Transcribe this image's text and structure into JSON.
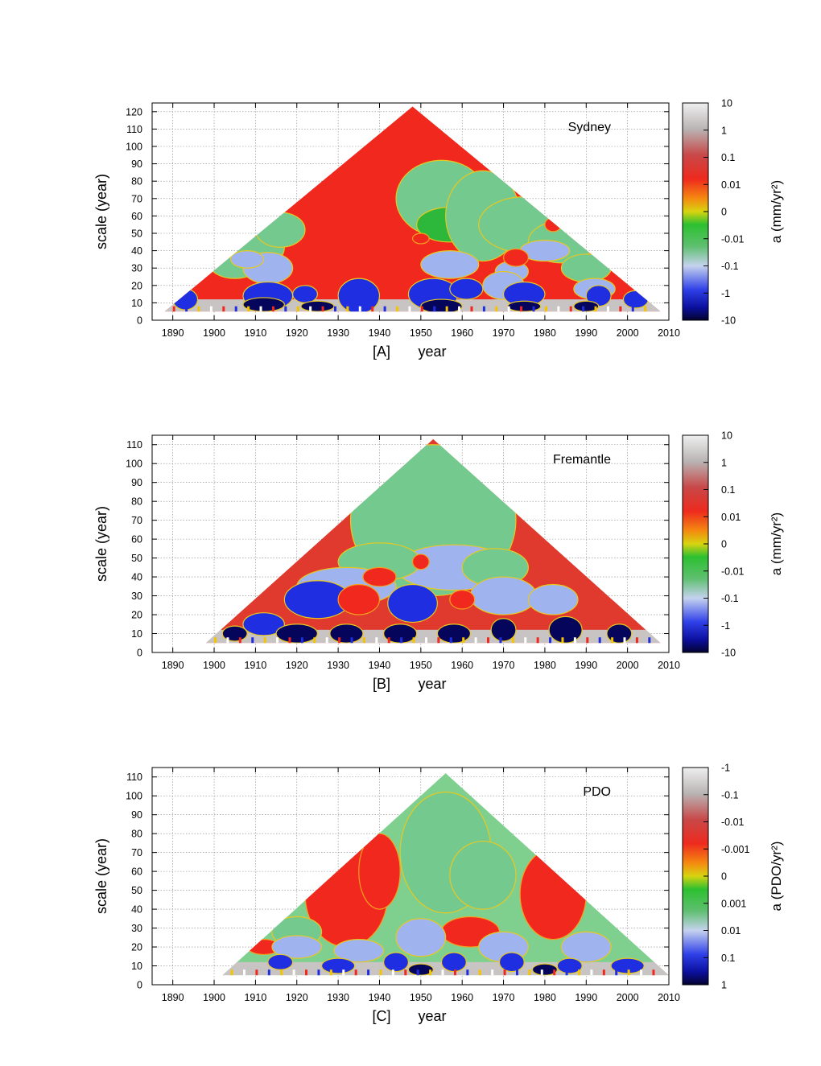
{
  "figure": {
    "panels": [
      {
        "id": "A",
        "caption_letter": "[A]",
        "station": "Sydney",
        "colorbar_label": "a (mm/yr²)",
        "colorbar_ticks": [
          "10",
          "1",
          "0.1",
          "0.01",
          "0",
          "-0.01",
          "-0.1",
          "-1",
          "-10"
        ]
      },
      {
        "id": "B",
        "caption_letter": "[B]",
        "station": "Fremantle",
        "colorbar_label": "a (mm/yr²)",
        "colorbar_ticks": [
          "10",
          "1",
          "0.1",
          "0.01",
          "0",
          "-0.01",
          "-0.1",
          "-1",
          "-10"
        ]
      },
      {
        "id": "C",
        "caption_letter": "[C]",
        "station": "PDO",
        "colorbar_label": "a (PDO/yr²)",
        "colorbar_ticks": [
          "-1",
          "-0.1",
          "-0.01",
          "-0.001",
          "0",
          "0.001",
          "0.01",
          "0.1",
          "1"
        ]
      }
    ]
  },
  "chart_data": [
    {
      "type": "heatmap",
      "title": "Sydney",
      "xlabel": "year",
      "ylabel": "scale (year)",
      "xlim": [
        1885,
        2010
      ],
      "ylim": [
        0,
        125
      ],
      "xticks": [
        1890,
        1900,
        1910,
        1920,
        1930,
        1940,
        1950,
        1960,
        1970,
        1980,
        1990,
        2000,
        2010
      ],
      "yticks": [
        0,
        10,
        20,
        30,
        40,
        50,
        60,
        70,
        80,
        90,
        100,
        110,
        120
      ],
      "grid": true,
      "domain_triangle": {
        "x_start": 1888,
        "x_end": 2008,
        "apex_year": 1948,
        "apex_scale": 123,
        "min_scale": 5
      },
      "blobs": [
        {
          "year": 1955,
          "scale": 70,
          "rx": 11,
          "ry": 22,
          "cls": "lgreen"
        },
        {
          "year": 1957,
          "scale": 55,
          "rx": 8,
          "ry": 10,
          "cls": "green"
        },
        {
          "year": 1965,
          "scale": 60,
          "rx": 9,
          "ry": 26,
          "cls": "lgreen"
        },
        {
          "year": 1975,
          "scale": 55,
          "rx": 11,
          "ry": 16,
          "cls": "lgreen"
        },
        {
          "year": 1984,
          "scale": 45,
          "rx": 8,
          "ry": 12,
          "cls": "lgreen"
        },
        {
          "year": 1990,
          "scale": 30,
          "rx": 6,
          "ry": 8,
          "cls": "lgreen"
        },
        {
          "year": 1905,
          "scale": 32,
          "rx": 6,
          "ry": 8,
          "cls": "lgreen"
        },
        {
          "year": 1910,
          "scale": 42,
          "rx": 7,
          "ry": 12,
          "cls": "lgreen"
        },
        {
          "year": 1916,
          "scale": 52,
          "rx": 6,
          "ry": 10,
          "cls": "lgreen"
        },
        {
          "year": 1913,
          "scale": 30,
          "rx": 6,
          "ry": 9,
          "cls": "lblue"
        },
        {
          "year": 1908,
          "scale": 35,
          "rx": 4,
          "ry": 5,
          "cls": "lblue"
        },
        {
          "year": 1957,
          "scale": 32,
          "rx": 7,
          "ry": 8,
          "cls": "lblue"
        },
        {
          "year": 1972,
          "scale": 28,
          "rx": 4,
          "ry": 6,
          "cls": "lblue"
        },
        {
          "year": 1980,
          "scale": 40,
          "rx": 6,
          "ry": 6,
          "cls": "lblue"
        },
        {
          "year": 1970,
          "scale": 20,
          "rx": 5,
          "ry": 8,
          "cls": "lblue"
        },
        {
          "year": 1992,
          "scale": 18,
          "rx": 5,
          "ry": 6,
          "cls": "lblue"
        },
        {
          "year": 1913,
          "scale": 14,
          "rx": 6,
          "ry": 8,
          "cls": "blue"
        },
        {
          "year": 1922,
          "scale": 15,
          "rx": 3,
          "ry": 5,
          "cls": "blue"
        },
        {
          "year": 1935,
          "scale": 14,
          "rx": 5,
          "ry": 10,
          "cls": "blue"
        },
        {
          "year": 1953,
          "scale": 15,
          "rx": 6,
          "ry": 9,
          "cls": "blue"
        },
        {
          "year": 1961,
          "scale": 18,
          "rx": 4,
          "ry": 6,
          "cls": "blue"
        },
        {
          "year": 1975,
          "scale": 15,
          "rx": 5,
          "ry": 7,
          "cls": "blue"
        },
        {
          "year": 1993,
          "scale": 14,
          "rx": 3,
          "ry": 6,
          "cls": "blue"
        },
        {
          "year": 2002,
          "scale": 12,
          "rx": 3,
          "ry": 5,
          "cls": "blue"
        },
        {
          "year": 1893,
          "scale": 12,
          "rx": 3,
          "ry": 6,
          "cls": "blue"
        },
        {
          "year": 1973,
          "scale": 36,
          "rx": 3,
          "ry": 5,
          "cls": "red"
        },
        {
          "year": 1950,
          "scale": 47,
          "rx": 2,
          "ry": 3,
          "cls": "red"
        },
        {
          "year": 1982,
          "scale": 55,
          "rx": 2,
          "ry": 4,
          "cls": "red"
        },
        {
          "year": 1912,
          "scale": 9,
          "rx": 5,
          "ry": 4,
          "cls": "dblue"
        },
        {
          "year": 1925,
          "scale": 8,
          "rx": 4,
          "ry": 3,
          "cls": "dblue"
        },
        {
          "year": 1955,
          "scale": 8,
          "rx": 5,
          "ry": 4,
          "cls": "dblue"
        },
        {
          "year": 1975,
          "scale": 8,
          "rx": 4,
          "ry": 3,
          "cls": "dblue"
        },
        {
          "year": 1990,
          "scale": 8,
          "rx": 3,
          "ry": 3,
          "cls": "dblue"
        }
      ]
    },
    {
      "type": "heatmap",
      "title": "Fremantle",
      "xlabel": "year",
      "ylabel": "scale (year)",
      "xlim": [
        1885,
        2010
      ],
      "ylim": [
        0,
        115
      ],
      "xticks": [
        1890,
        1900,
        1910,
        1920,
        1930,
        1940,
        1950,
        1960,
        1970,
        1980,
        1990,
        2000,
        2010
      ],
      "yticks": [
        0,
        10,
        20,
        30,
        40,
        50,
        60,
        70,
        80,
        90,
        100,
        110
      ],
      "grid": true,
      "domain_triangle": {
        "x_start": 1898,
        "x_end": 2008,
        "apex_year": 1953,
        "apex_scale": 113,
        "min_scale": 5
      },
      "blobs": [
        {
          "year": 1953,
          "scale": 70,
          "rx": 20,
          "ry": 40,
          "cls": "lgreen"
        },
        {
          "year": 1958,
          "scale": 45,
          "rx": 14,
          "ry": 12,
          "cls": "lblue"
        },
        {
          "year": 1940,
          "scale": 48,
          "rx": 10,
          "ry": 10,
          "cls": "lgreen"
        },
        {
          "year": 1968,
          "scale": 45,
          "rx": 8,
          "ry": 10,
          "cls": "lgreen"
        },
        {
          "year": 1932,
          "scale": 35,
          "rx": 12,
          "ry": 10,
          "cls": "lblue"
        },
        {
          "year": 1925,
          "scale": 28,
          "rx": 8,
          "ry": 10,
          "cls": "blue"
        },
        {
          "year": 1948,
          "scale": 26,
          "rx": 6,
          "ry": 10,
          "cls": "blue"
        },
        {
          "year": 1970,
          "scale": 30,
          "rx": 8,
          "ry": 10,
          "cls": "lblue"
        },
        {
          "year": 1982,
          "scale": 28,
          "rx": 6,
          "ry": 8,
          "cls": "lblue"
        },
        {
          "year": 1912,
          "scale": 15,
          "rx": 5,
          "ry": 6,
          "cls": "blue"
        },
        {
          "year": 1940,
          "scale": 40,
          "rx": 4,
          "ry": 5,
          "cls": "red"
        },
        {
          "year": 1935,
          "scale": 28,
          "rx": 5,
          "ry": 8,
          "cls": "red"
        },
        {
          "year": 1960,
          "scale": 28,
          "rx": 3,
          "ry": 5,
          "cls": "red"
        },
        {
          "year": 1950,
          "scale": 48,
          "rx": 2,
          "ry": 4,
          "cls": "red"
        },
        {
          "year": 1920,
          "scale": 10,
          "rx": 5,
          "ry": 5,
          "cls": "dblue"
        },
        {
          "year": 1932,
          "scale": 10,
          "rx": 4,
          "ry": 5,
          "cls": "dblue"
        },
        {
          "year": 1945,
          "scale": 10,
          "rx": 4,
          "ry": 5,
          "cls": "dblue"
        },
        {
          "year": 1958,
          "scale": 10,
          "rx": 4,
          "ry": 5,
          "cls": "dblue"
        },
        {
          "year": 1970,
          "scale": 12,
          "rx": 3,
          "ry": 6,
          "cls": "dblue"
        },
        {
          "year": 1985,
          "scale": 12,
          "rx": 4,
          "ry": 7,
          "cls": "dblue"
        },
        {
          "year": 1998,
          "scale": 10,
          "rx": 3,
          "ry": 5,
          "cls": "dblue"
        },
        {
          "year": 1905,
          "scale": 10,
          "rx": 3,
          "ry": 4,
          "cls": "dblue"
        }
      ]
    },
    {
      "type": "heatmap",
      "title": "PDO",
      "xlabel": "year",
      "ylabel": "scale (year)",
      "xlim": [
        1885,
        2010
      ],
      "ylim": [
        0,
        115
      ],
      "xticks": [
        1890,
        1900,
        1910,
        1920,
        1930,
        1940,
        1950,
        1960,
        1970,
        1980,
        1990,
        2000,
        2010
      ],
      "yticks": [
        0,
        10,
        20,
        30,
        40,
        50,
        60,
        70,
        80,
        90,
        100,
        110
      ],
      "grid": true,
      "domain_triangle": {
        "x_start": 1902,
        "x_end": 2010,
        "apex_year": 1956,
        "apex_scale": 112,
        "min_scale": 5
      },
      "blobs": [
        {
          "year": 1932,
          "scale": 48,
          "rx": 10,
          "ry": 28,
          "cls": "red"
        },
        {
          "year": 1940,
          "scale": 60,
          "rx": 5,
          "ry": 20,
          "cls": "red"
        },
        {
          "year": 1982,
          "scale": 48,
          "rx": 8,
          "ry": 24,
          "cls": "red"
        },
        {
          "year": 1956,
          "scale": 70,
          "rx": 11,
          "ry": 32,
          "cls": "lgreen"
        },
        {
          "year": 1965,
          "scale": 58,
          "rx": 8,
          "ry": 18,
          "cls": "lgreen"
        },
        {
          "year": 1962,
          "scale": 28,
          "rx": 7,
          "ry": 8,
          "cls": "red"
        },
        {
          "year": 1912,
          "scale": 20,
          "rx": 4,
          "ry": 4,
          "cls": "red"
        },
        {
          "year": 1920,
          "scale": 28,
          "rx": 6,
          "ry": 8,
          "cls": "lgreen"
        },
        {
          "year": 1920,
          "scale": 20,
          "rx": 6,
          "ry": 6,
          "cls": "lblue"
        },
        {
          "year": 1935,
          "scale": 18,
          "rx": 6,
          "ry": 6,
          "cls": "lblue"
        },
        {
          "year": 1950,
          "scale": 25,
          "rx": 6,
          "ry": 10,
          "cls": "lblue"
        },
        {
          "year": 1970,
          "scale": 20,
          "rx": 6,
          "ry": 8,
          "cls": "lblue"
        },
        {
          "year": 1990,
          "scale": 20,
          "rx": 6,
          "ry": 8,
          "cls": "lblue"
        },
        {
          "year": 1916,
          "scale": 12,
          "rx": 3,
          "ry": 4,
          "cls": "blue"
        },
        {
          "year": 1930,
          "scale": 10,
          "rx": 4,
          "ry": 4,
          "cls": "blue"
        },
        {
          "year": 1944,
          "scale": 12,
          "rx": 3,
          "ry": 5,
          "cls": "blue"
        },
        {
          "year": 1958,
          "scale": 12,
          "rx": 3,
          "ry": 5,
          "cls": "blue"
        },
        {
          "year": 1972,
          "scale": 12,
          "rx": 3,
          "ry": 5,
          "cls": "blue"
        },
        {
          "year": 1986,
          "scale": 10,
          "rx": 3,
          "ry": 4,
          "cls": "blue"
        },
        {
          "year": 2000,
          "scale": 10,
          "rx": 4,
          "ry": 4,
          "cls": "blue"
        },
        {
          "year": 1950,
          "scale": 8,
          "rx": 3,
          "ry": 3,
          "cls": "dblue"
        },
        {
          "year": 1980,
          "scale": 8,
          "rx": 3,
          "ry": 3,
          "cls": "dblue"
        }
      ]
    }
  ]
}
